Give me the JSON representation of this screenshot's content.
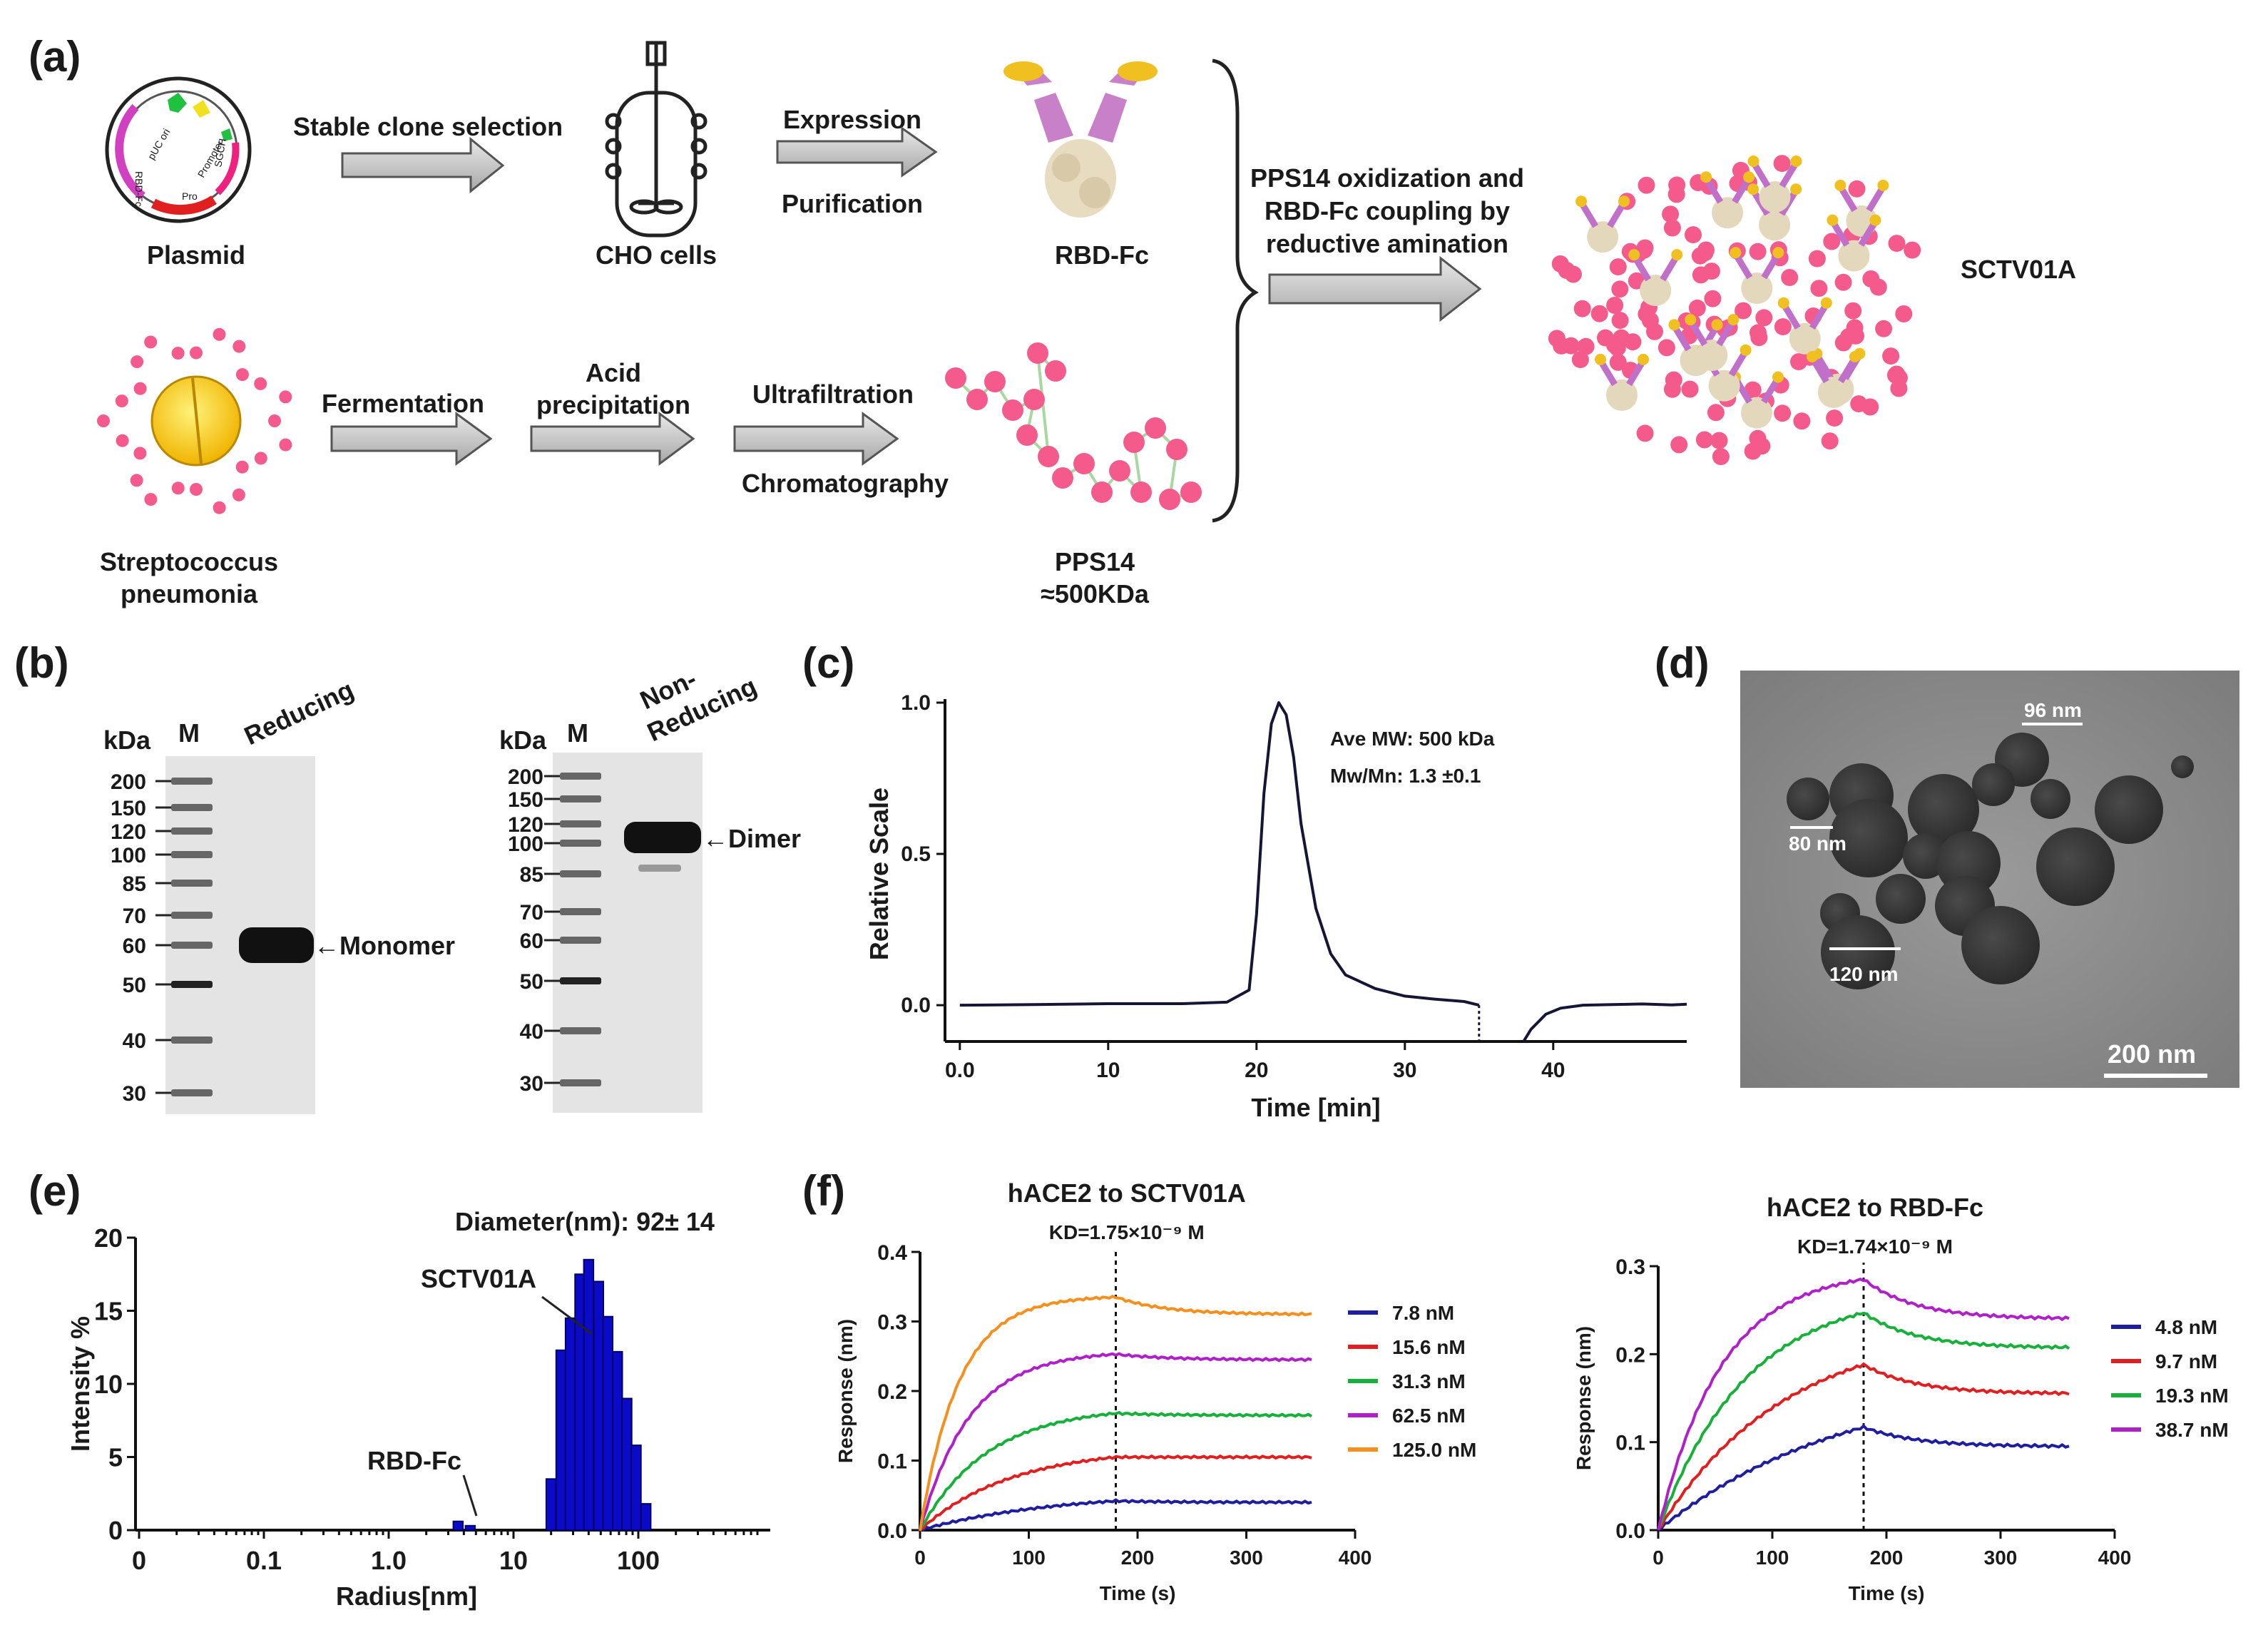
{
  "panels": {
    "a": "(a)",
    "b": "(b)",
    "c": "(c)",
    "d": "(d)",
    "e": "(e)",
    "f": "(f)"
  },
  "panel_a": {
    "plasmid": "Plasmid",
    "step1": "Stable clone selection",
    "cho": "CHO cells",
    "expression": "Expression",
    "purification": "Purification",
    "rbd_fc": "RBD-Fc",
    "coupling_line1": "PPS14 oxidization and",
    "coupling_line2": "RBD-Fc coupling by",
    "coupling_line3": "reductive amination",
    "product": "SCTV01A",
    "strep_line1": "Streptococcus",
    "strep_line2": "pneumonia",
    "fermentation": "Fermentation",
    "acid_line1": "Acid",
    "acid_line2": "precipitation",
    "ultrafiltration": "Ultrafiltration",
    "chromatography": "Chromatography",
    "pps14": "PPS14",
    "pps14_mw": "≈500KDa",
    "plasmid_parts": [
      "pUC ori",
      "Promoter",
      "Pro",
      "SGCH",
      "RBD-Fc"
    ]
  },
  "panel_b": {
    "kda": "kDa",
    "marker": "M",
    "left_lane": "Reducing",
    "right_lane_line1": "Non-",
    "right_lane_line2": "Reducing",
    "left_markers": [
      "200",
      "150",
      "120",
      "100",
      "85",
      "70",
      "60",
      "50",
      "40",
      "30"
    ],
    "right_markers": [
      "200",
      "150",
      "120",
      "100",
      "85",
      "70",
      "60",
      "50",
      "40",
      "30"
    ],
    "monomer": "←Monomer",
    "dimer": "←Dimer"
  },
  "panel_d": {
    "scale_96": "96 nm",
    "scale_80": "80 nm",
    "scale_120": "120 nm",
    "scale_bar": "200 nm"
  },
  "chart_data": [
    {
      "id": "c",
      "type": "line",
      "title": "",
      "xlabel": "Time [min]",
      "ylabel": "Relative Scale",
      "xlim": [
        -1,
        49
      ],
      "ylim": [
        -0.12,
        1.0
      ],
      "xticks": [
        "0.0",
        "10",
        "20",
        "30",
        "40"
      ],
      "yticks": [
        "0.0",
        "0.5",
        "1.0"
      ],
      "annotations": [
        "Ave MW: 500 kDa",
        "Mw/Mn: 1.3 ±0.1"
      ],
      "x": [
        0,
        5,
        10,
        15,
        18,
        19.5,
        20,
        20.5,
        21,
        21.5,
        22,
        22.5,
        23,
        24,
        25,
        26,
        28,
        30,
        32,
        34,
        35
      ],
      "y": [
        0.0,
        0.002,
        0.005,
        0.005,
        0.01,
        0.05,
        0.3,
        0.7,
        0.93,
        1.0,
        0.96,
        0.82,
        0.6,
        0.32,
        0.17,
        0.1,
        0.055,
        0.03,
        0.02,
        0.012,
        0.0
      ],
      "x2": [
        38,
        38.5,
        39.5,
        40.5,
        42,
        44,
        46,
        48,
        49
      ],
      "y2": [
        -0.12,
        -0.08,
        -0.03,
        -0.01,
        0.0,
        0.002,
        0.004,
        0.001,
        0.003
      ]
    },
    {
      "id": "e",
      "type": "bar",
      "title": "Diameter(nm): 92± 14",
      "xlabel": "Radius[nm]",
      "ylabel": "Intensity %",
      "xscale": "log",
      "xticks": [
        "0",
        "0.1",
        "1.0",
        "10",
        "100"
      ],
      "yticks": [
        "0",
        "5",
        "10",
        "15",
        "20"
      ],
      "ylim": [
        0,
        20
      ],
      "labels": [
        "SCTV01A",
        "RBD-Fc"
      ],
      "bins": [
        {
          "radius": 3.6,
          "value": 0.6
        },
        {
          "radius": 4.5,
          "value": 0.3
        },
        {
          "radius": 20,
          "value": 3.5
        },
        {
          "radius": 24,
          "value": 12.3
        },
        {
          "radius": 28.5,
          "value": 14.5
        },
        {
          "radius": 34,
          "value": 17.5
        },
        {
          "radius": 40,
          "value": 18.5
        },
        {
          "radius": 48,
          "value": 17.0
        },
        {
          "radius": 57,
          "value": 14.6
        },
        {
          "radius": 68,
          "value": 12.2
        },
        {
          "radius": 81,
          "value": 9.0
        },
        {
          "radius": 96,
          "value": 5.8
        },
        {
          "radius": 115,
          "value": 1.8
        }
      ]
    },
    {
      "id": "f1",
      "type": "line",
      "title": "hACE2 to SCTV01A",
      "kd": "KD=1.75×10⁻⁹ M",
      "xlabel": "Time (s)",
      "ylabel": "Response (nm)",
      "xlim": [
        0,
        400
      ],
      "ylim": [
        0,
        0.4
      ],
      "xticks": [
        "0",
        "100",
        "200",
        "300",
        "400"
      ],
      "yticks": [
        "0.0",
        "0.1",
        "0.2",
        "0.3",
        "0.4"
      ],
      "t_assoc": 180,
      "t_end": 360,
      "series": [
        {
          "name": "7.8 nM",
          "color": "#1f1f9e",
          "peak": 0.042,
          "end": 0.04,
          "k": 0.008
        },
        {
          "name": "15.6 nM",
          "color": "#e02020",
          "peak": 0.105,
          "end": 0.105,
          "k": 0.012
        },
        {
          "name": "31.3 nM",
          "color": "#18b03a",
          "peak": 0.168,
          "end": 0.165,
          "k": 0.016
        },
        {
          "name": "62.5 nM",
          "color": "#b020c8",
          "peak": 0.253,
          "end": 0.245,
          "k": 0.022
        },
        {
          "name": "125.0 nM",
          "color": "#f5901e",
          "peak": 0.335,
          "end": 0.31,
          "k": 0.028
        }
      ]
    },
    {
      "id": "f2",
      "type": "line",
      "title": "hACE2 to RBD-Fc",
      "kd": "KD=1.74×10⁻⁹ M",
      "xlabel": "Time (s)",
      "ylabel": "Response (nm)",
      "xlim": [
        0,
        400
      ],
      "ylim": [
        0,
        0.3
      ],
      "xticks": [
        "0",
        "100",
        "200",
        "300",
        "400"
      ],
      "yticks": [
        "0.0",
        "0.1",
        "0.2",
        "0.3"
      ],
      "t_assoc": 180,
      "t_end": 360,
      "series": [
        {
          "name": "4.8 nM",
          "color": "#1f1f9e",
          "peak": 0.117,
          "end": 0.095,
          "k": 0.006
        },
        {
          "name": "9.7 nM",
          "color": "#e02020",
          "peak": 0.188,
          "end": 0.155,
          "k": 0.009
        },
        {
          "name": "19.3 nM",
          "color": "#18b03a",
          "peak": 0.247,
          "end": 0.207,
          "k": 0.013
        },
        {
          "name": "38.7 nM",
          "color": "#b020c8",
          "peak": 0.285,
          "end": 0.24,
          "k": 0.018
        }
      ]
    }
  ]
}
